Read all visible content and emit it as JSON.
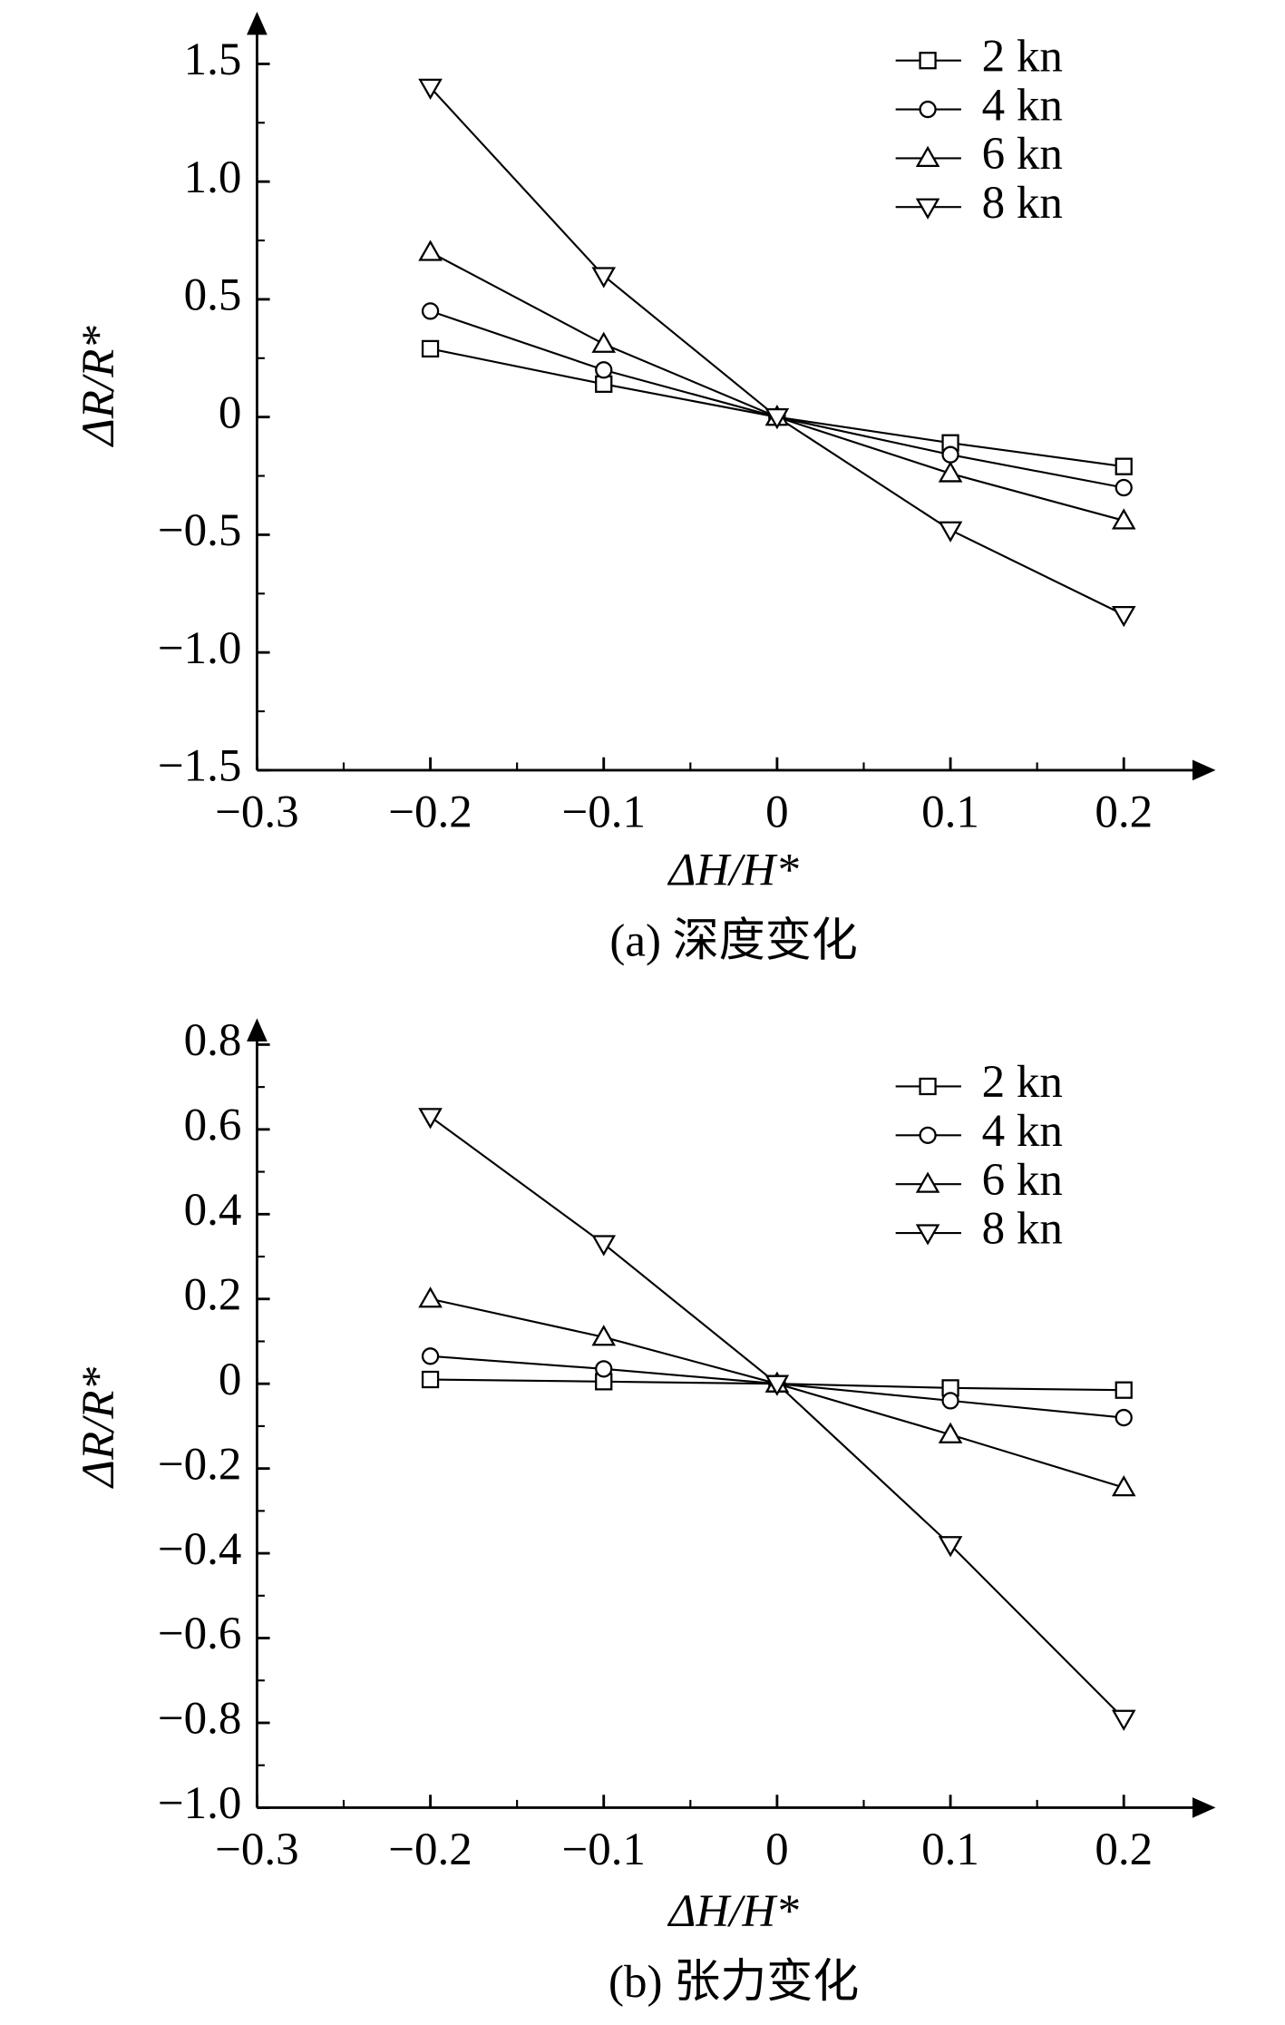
{
  "chart_data": [
    {
      "type": "line",
      "caption": "(a) 深度变化",
      "xlabel": "ΔH/H*",
      "ylabel": "ΔR/R*",
      "x": [
        -0.2,
        -0.1,
        0,
        0.1,
        0.2
      ],
      "xlim": [
        -0.3,
        0.25
      ],
      "xticks": [
        {
          "value": -0.3,
          "label": "−0.3"
        },
        {
          "value": -0.2,
          "label": "−0.2"
        },
        {
          "value": -0.1,
          "label": "−0.1"
        },
        0,
        0.1,
        0.2
      ],
      "ylim": [
        -1.5,
        1.7
      ],
      "yticks": [
        {
          "value": -1.5,
          "label": "−1.5"
        },
        {
          "value": -1.0,
          "label": "−1.0"
        },
        {
          "value": -0.5,
          "label": "−0.5"
        },
        0,
        0.5,
        {
          "value": 1.0,
          "label": "1.0"
        },
        1.5
      ],
      "series": [
        {
          "name": "2 kn",
          "color": "#000000",
          "marker": "square",
          "values": [
            0.29,
            0.14,
            0,
            -0.11,
            -0.21
          ]
        },
        {
          "name": "4 kn",
          "color": "#000000",
          "marker": "circle",
          "values": [
            0.45,
            0.2,
            0,
            -0.16,
            -0.3
          ]
        },
        {
          "name": "6 kn",
          "color": "#000000",
          "marker": "triangle-up",
          "values": [
            0.7,
            0.31,
            0,
            -0.24,
            -0.44
          ]
        },
        {
          "name": "8 kn",
          "color": "#000000",
          "marker": "triangle-down",
          "values": [
            1.4,
            0.6,
            0,
            -0.48,
            -0.84
          ]
        }
      ]
    },
    {
      "type": "line",
      "caption": "(b) 张力变化",
      "xlabel": "ΔH/H*",
      "ylabel": "ΔR/R*",
      "x": [
        -0.2,
        -0.1,
        0,
        0.1,
        0.2
      ],
      "xlim": [
        -0.3,
        0.25
      ],
      "xticks": [
        {
          "value": -0.3,
          "label": "−0.3"
        },
        {
          "value": -0.2,
          "label": "−0.2"
        },
        {
          "value": -0.1,
          "label": "−0.1"
        },
        0,
        0.1,
        0.2
      ],
      "ylim": [
        -1.0,
        0.85
      ],
      "yticks": [
        {
          "value": -1.0,
          "label": "−1.0"
        },
        {
          "value": -0.8,
          "label": "−0.8"
        },
        {
          "value": -0.6,
          "label": "−0.6"
        },
        {
          "value": -0.4,
          "label": "−0.4"
        },
        {
          "value": -0.2,
          "label": "−0.2"
        },
        0,
        0.2,
        0.4,
        0.6,
        0.8
      ],
      "series": [
        {
          "name": "2 kn",
          "color": "#000000",
          "marker": "square",
          "values": [
            0.01,
            0.005,
            0,
            -0.01,
            -0.015
          ]
        },
        {
          "name": "4 kn",
          "color": "#000000",
          "marker": "circle",
          "values": [
            0.065,
            0.035,
            0,
            -0.04,
            -0.08
          ]
        },
        {
          "name": "6 kn",
          "color": "#000000",
          "marker": "triangle-up",
          "values": [
            0.2,
            0.11,
            0,
            -0.12,
            -0.245
          ]
        },
        {
          "name": "8 kn",
          "color": "#000000",
          "marker": "triangle-down",
          "values": [
            0.63,
            0.33,
            0,
            -0.38,
            -0.79
          ]
        }
      ]
    }
  ]
}
